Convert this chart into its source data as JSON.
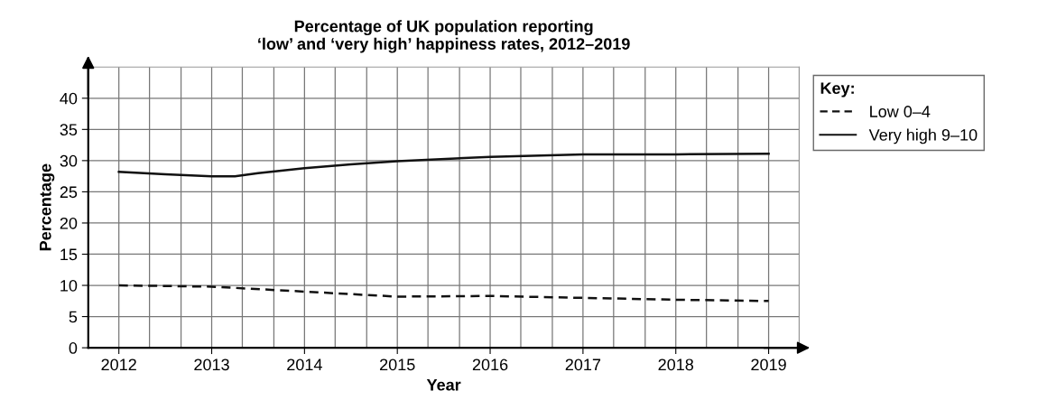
{
  "chart_data": {
    "type": "line",
    "title": "Percentage of UK population reporting\n‘low’ and ‘very high’ happiness rates, 2012–2019",
    "xlabel": "Year",
    "ylabel": "Percentage",
    "legend_title": "Key:",
    "legend": "right",
    "grid": true,
    "marker": "none",
    "xlim": [
      2011.67,
      2019.33
    ],
    "ylim": [
      0,
      45
    ],
    "xticks": [
      {
        "value": 2011.67,
        "label": null
      },
      2012,
      {
        "value": 2012.33,
        "label": null
      },
      {
        "value": 2012.67,
        "label": null
      },
      2013,
      {
        "value": 2013.33,
        "label": null
      },
      {
        "value": 2013.67,
        "label": null
      },
      2014,
      {
        "value": 2014.33,
        "label": null
      },
      {
        "value": 2014.67,
        "label": null
      },
      2015,
      {
        "value": 2015.33,
        "label": null
      },
      {
        "value": 2015.67,
        "label": null
      },
      2016,
      {
        "value": 2016.33,
        "label": null
      },
      {
        "value": 2016.67,
        "label": null
      },
      2017,
      {
        "value": 2017.33,
        "label": null
      },
      {
        "value": 2017.67,
        "label": null
      },
      2018,
      {
        "value": 2018.33,
        "label": null
      },
      {
        "value": 2018.67,
        "label": null
      },
      2019,
      {
        "value": 2019.33,
        "label": null
      }
    ],
    "yticks": [
      0,
      5,
      10,
      15,
      20,
      25,
      30,
      35,
      40
    ],
    "series": [
      {
        "name": "Low 0–4",
        "color": "#111111",
        "line_style": "dashed",
        "x": [
          2012,
          2013,
          2014,
          2015,
          2016,
          2017,
          2018,
          2019
        ],
        "values": [
          10.0,
          9.8,
          9.0,
          8.2,
          8.3,
          8.0,
          7.7,
          7.5
        ]
      },
      {
        "name": "Very high 9–10",
        "color": "#111111",
        "line_style": "solid",
        "x": [
          2012,
          2012.5,
          2013,
          2013.25,
          2013.5,
          2014,
          2014.5,
          2015,
          2016,
          2017,
          2018,
          2019
        ],
        "values": [
          28.2,
          27.8,
          27.5,
          27.5,
          28.0,
          28.8,
          29.4,
          29.9,
          30.6,
          31.0,
          31.0,
          31.1
        ]
      }
    ]
  }
}
